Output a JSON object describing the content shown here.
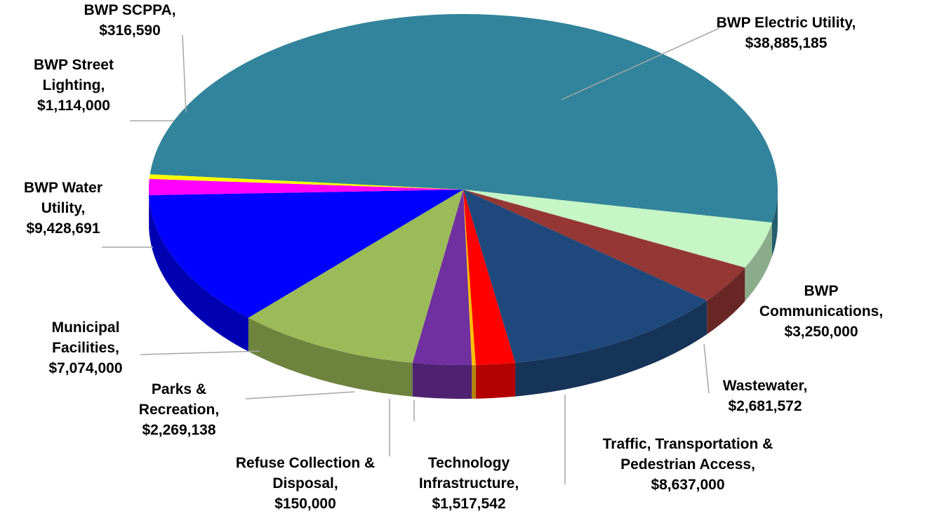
{
  "chart_data": {
    "type": "pie3d",
    "categories": [
      "BWP Electric Utility",
      "BWP Communications",
      "Wastewater",
      "Traffic, Transportation & Pedestrian Access",
      "Technology Infrastructure",
      "Refuse Collection & Disposal",
      "Parks & Recreation",
      "Municipal Facilities",
      "BWP Water Utility",
      "BWP Street Lighting",
      "BWP SCPPA"
    ],
    "values": [
      38885185,
      3250000,
      2681572,
      8637000,
      1517542,
      150000,
      2269138,
      7074000,
      9428691,
      1114000,
      316590
    ],
    "value_labels": [
      "$38,885,185",
      "$3,250,000",
      "$2,681,572",
      "$8,637,000",
      "$1,517,542",
      "$150,000",
      "$2,269,138",
      "$7,074,000",
      "$9,428,691",
      "$1,114,000",
      "$316,590"
    ],
    "label_separator": ",",
    "colors": [
      "#31849b",
      "#c6f5c6",
      "#953735",
      "#1f497d",
      "#ff0000",
      "#ffc000",
      "#7030a0",
      "#9bbb59",
      "#0000ff",
      "#ff00ff",
      "#ffff00"
    ]
  }
}
